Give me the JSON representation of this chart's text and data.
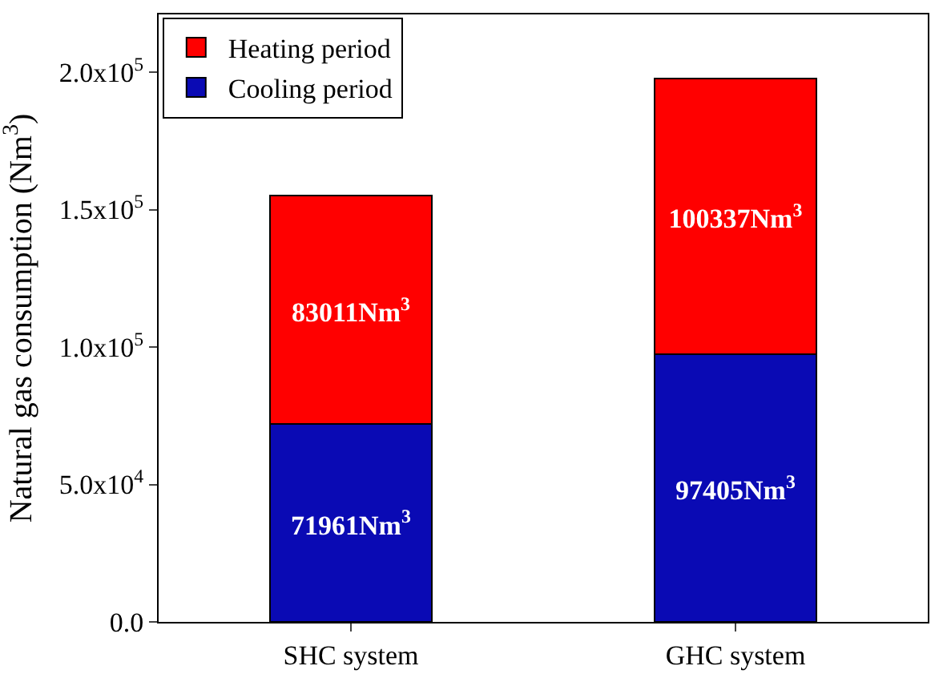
{
  "chart_data": {
    "type": "bar",
    "stacked": true,
    "categories": [
      "SHC system",
      "GHC system"
    ],
    "ylabel": "Natural gas consumption (Nm$^{3}$)",
    "series": [
      {
        "name": "Cooling period",
        "color": "#0a0ab4",
        "values": [
          71961,
          97405
        ],
        "value_labels": [
          "71961Nm$^{3}$",
          "97405Nm$^{3}$"
        ]
      },
      {
        "name": "Heating period",
        "color": "#ff0000",
        "values": [
          83011,
          100337
        ],
        "value_labels": [
          "83011Nm$^{3}$",
          "100337Nm$^{3}$"
        ]
      }
    ],
    "ylim": [
      0,
      221000
    ],
    "yticks": [
      {
        "value": 0,
        "label": "0.0"
      },
      {
        "value": 50000,
        "label": "5.0x10$^{4}$"
      },
      {
        "value": 100000,
        "label": "1.0x10$^{5}$"
      },
      {
        "value": 150000,
        "label": "1.5x10$^{5}$"
      },
      {
        "value": 200000,
        "label": "2.0x10$^{5}$"
      }
    ],
    "legend": "top left"
  }
}
